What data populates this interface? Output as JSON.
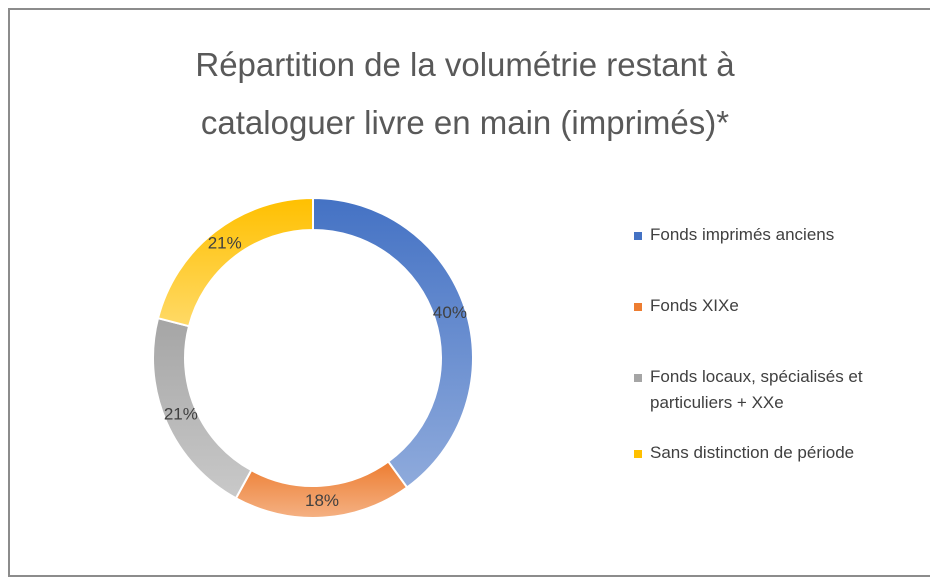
{
  "chart_data": {
    "type": "donut",
    "title": "Répartition de la volumétrie restant à cataloguer livre en main (imprimés)*",
    "categories": [
      "Fonds imprimés anciens",
      "Fonds XIXe",
      "Fonds locaux, spécialisés et particuliers + XXe",
      "Sans distinction de période"
    ],
    "values": [
      40,
      18,
      21,
      21
    ],
    "value_labels": [
      "40%",
      "18%",
      "21%",
      "21%"
    ],
    "colors": [
      "#4472c4",
      "#ed7d31",
      "#a5a5a5",
      "#ffc000"
    ],
    "legend": "right"
  }
}
